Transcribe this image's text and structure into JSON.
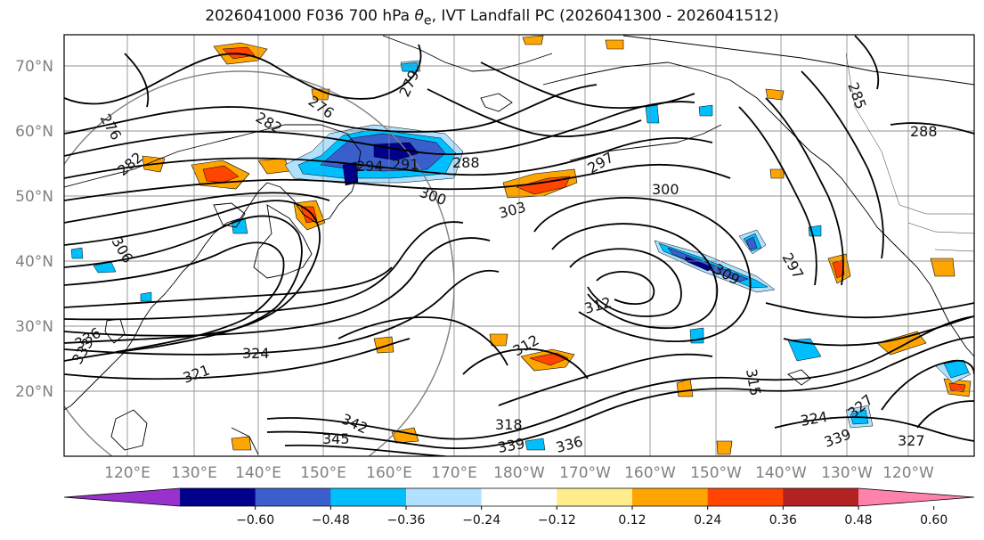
{
  "title_prefix": "2026041000 F036 700 hPa ",
  "title_theta": "θ",
  "title_sub": "e",
  "title_suffix": ", IVT Landfall PC (2026041300 - 2026041512)",
  "lat_labels": [
    "70°N",
    "60°N",
    "50°N",
    "40°N",
    "30°N",
    "20°N"
  ],
  "lon_labels": [
    "120°E",
    "130°E",
    "140°E",
    "150°E",
    "160°E",
    "170°E",
    "180°W",
    "170°W",
    "160°W",
    "150°W",
    "140°W",
    "130°W",
    "120°W"
  ],
  "contour_labels": [
    "276",
    "276",
    "279",
    "282",
    "282",
    "285",
    "288",
    "288",
    "291",
    "294",
    "297",
    "297",
    "300",
    "300",
    "303",
    "306",
    "309",
    "312",
    "312",
    "315",
    "318",
    "321",
    "324",
    "324",
    "327",
    "327",
    "333",
    "336",
    "336",
    "339",
    "339",
    "342",
    "345"
  ],
  "colorbar": {
    "colors": [
      "#9932cc",
      "#00008b",
      "#3a5fcd",
      "#00bfff",
      "#b0e2ff",
      "#ffffff",
      "#ffec8b",
      "#ffa500",
      "#ff4500",
      "#b22222",
      "#ff82ab"
    ],
    "tick_labels": [
      "−0.60",
      "−0.48",
      "−0.36",
      "−0.24",
      "−0.12",
      "0.12",
      "0.24",
      "0.36",
      "0.48",
      "0.60"
    ]
  },
  "colors": {
    "coast": "#000000",
    "grid": "#808080",
    "contour": "#000000"
  }
}
